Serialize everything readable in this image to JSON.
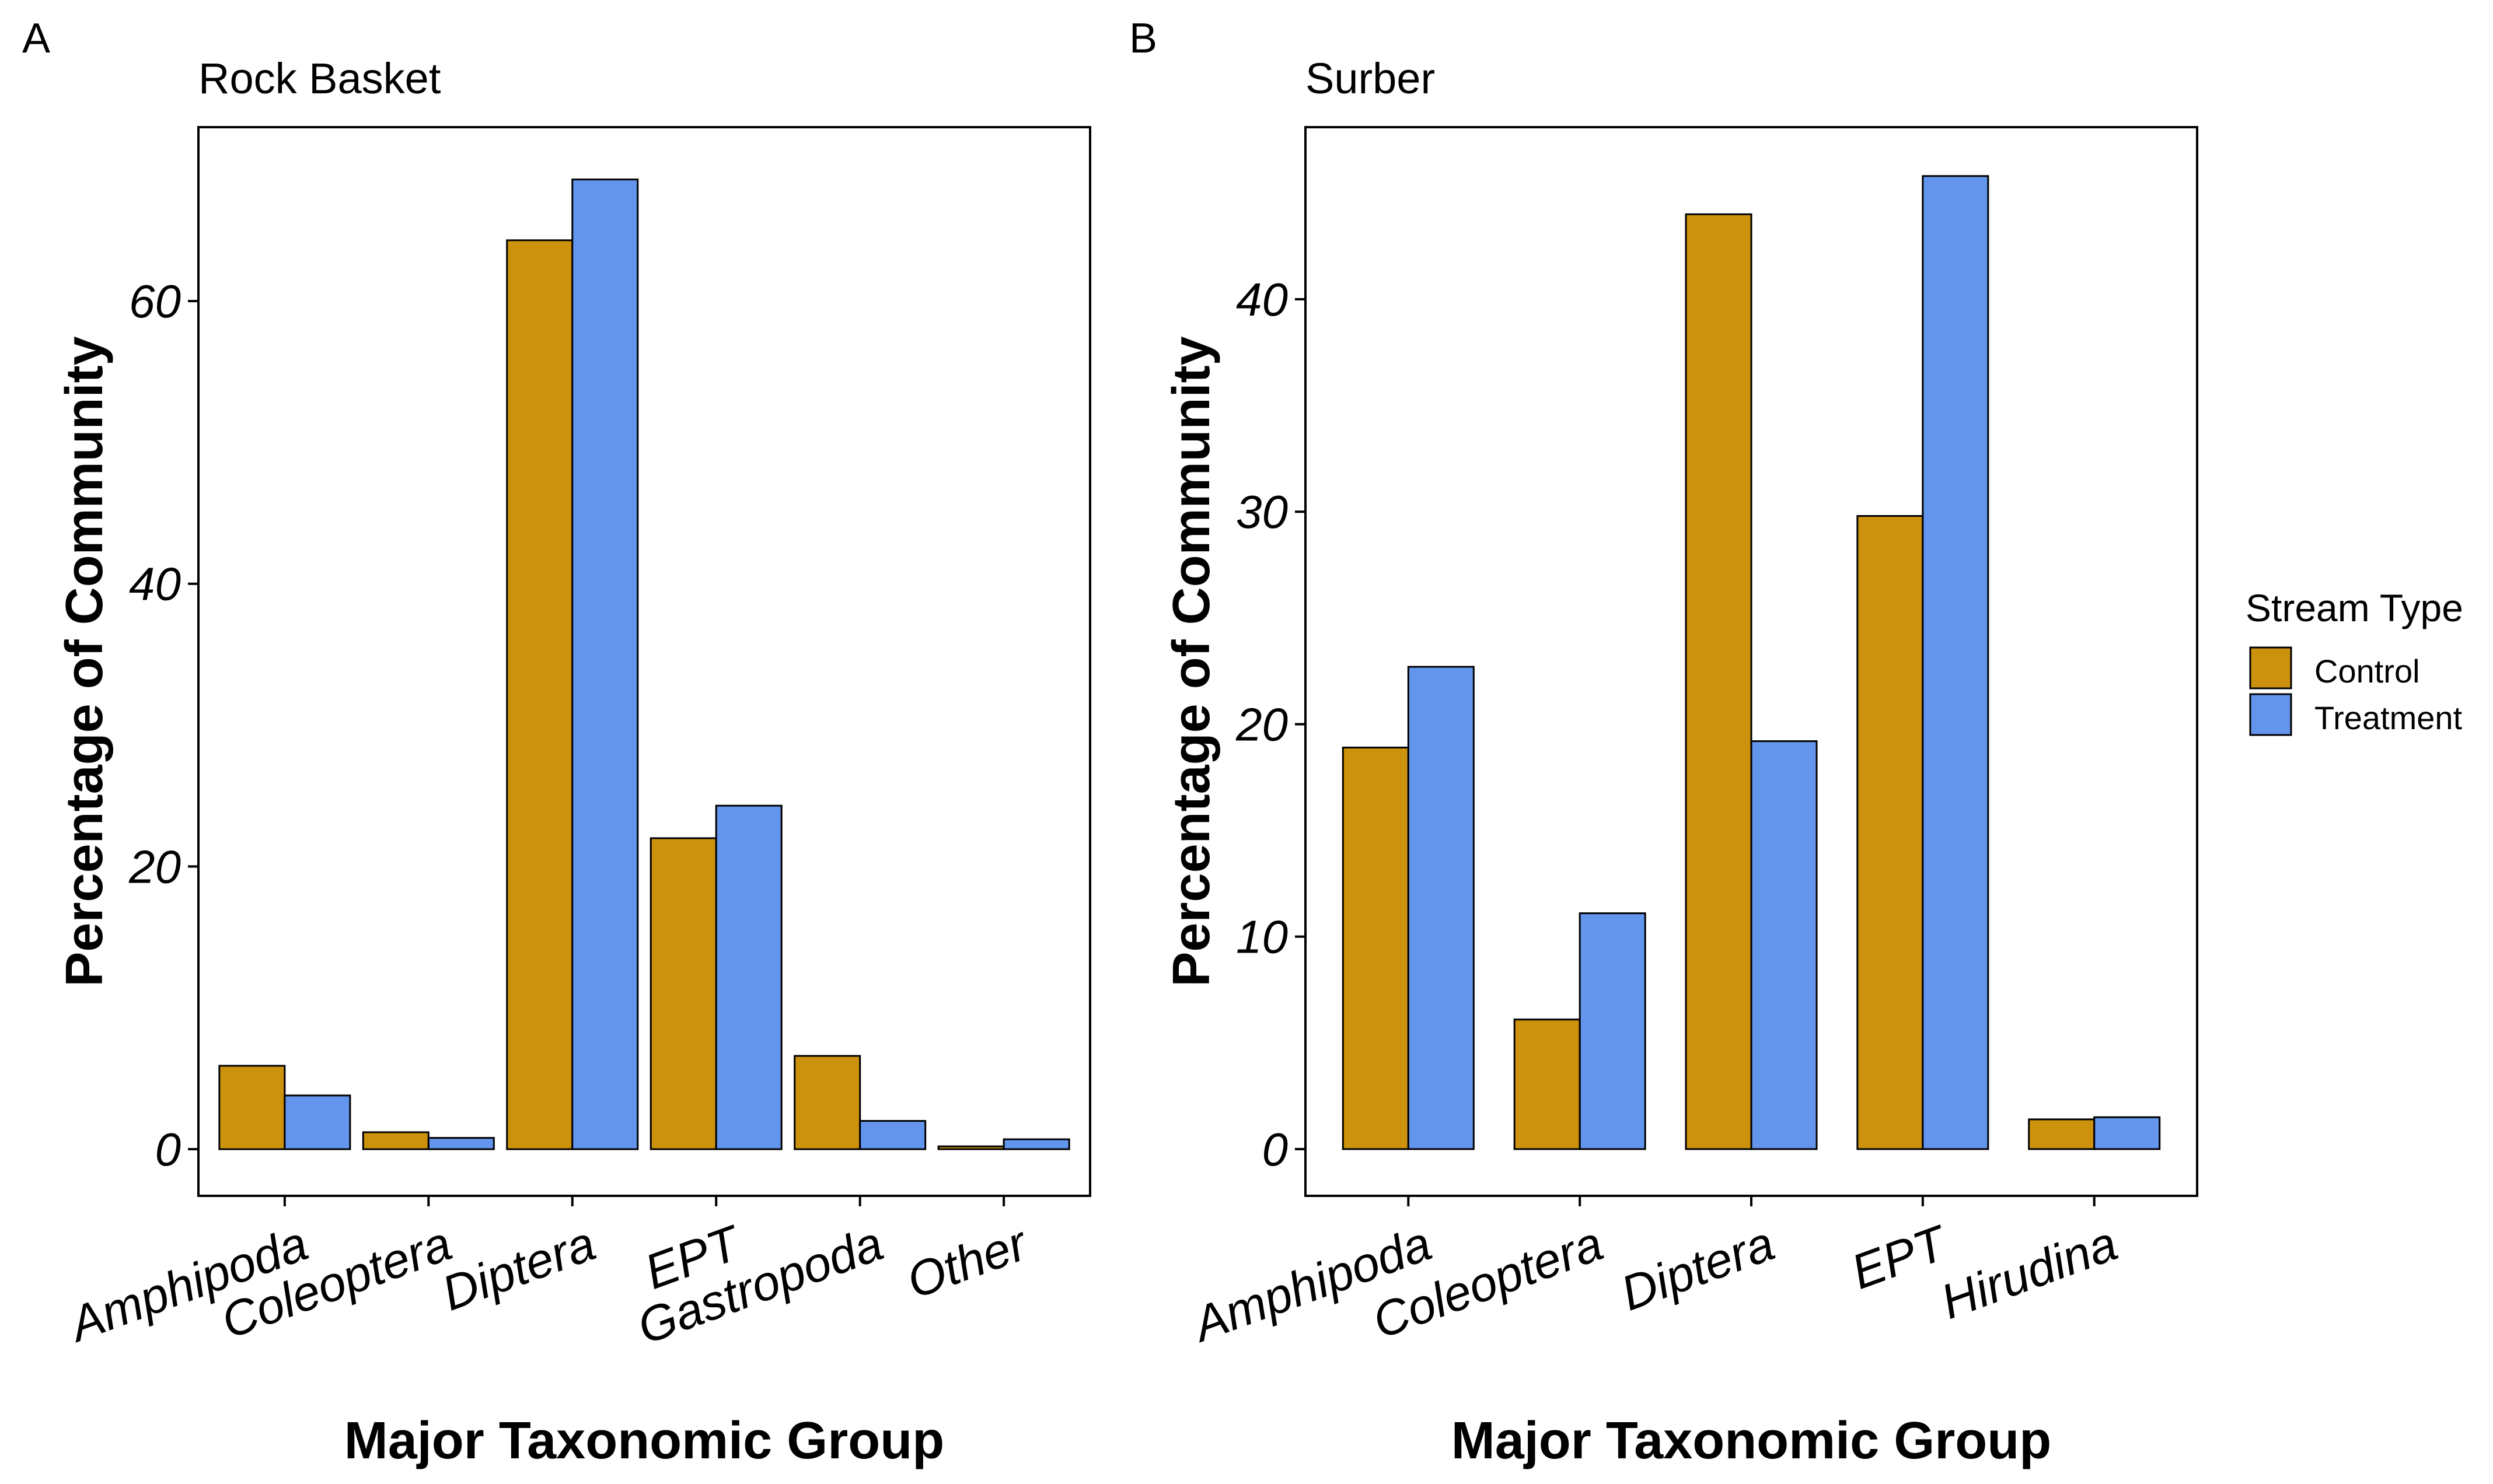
{
  "chart_data": [
    {
      "panel": "A",
      "type": "bar",
      "title": "Rock Basket",
      "xlabel": "Major Taxonomic Group",
      "ylabel": "Percentage of Community",
      "categories": [
        "Amphipoda",
        "Coleoptera",
        "Diptera",
        "EPT",
        "Gastropoda",
        "Other"
      ],
      "series": [
        {
          "name": "Control",
          "values": [
            5.9,
            1.2,
            64.3,
            22.0,
            6.6,
            0.2
          ]
        },
        {
          "name": "Treatment",
          "values": [
            3.8,
            0.8,
            68.6,
            24.3,
            2.0,
            0.7
          ]
        }
      ],
      "ylim": [
        -3.3,
        72.3
      ],
      "yticks": [
        0,
        20,
        40,
        60
      ],
      "ytick_labels": [
        "0",
        "20",
        "40",
        "60"
      ],
      "grid": false
    },
    {
      "panel": "B",
      "type": "bar",
      "title": "Surber",
      "xlabel": "Major Taxonomic Group",
      "ylabel": "Percentage of Community",
      "categories": [
        "Amphipoda",
        "Coleoptera",
        "Diptera",
        "EPT",
        "Hirudina"
      ],
      "series": [
        {
          "name": "Control",
          "values": [
            18.9,
            6.1,
            44.0,
            29.8,
            1.4
          ]
        },
        {
          "name": "Treatment",
          "values": [
            22.7,
            11.1,
            19.2,
            45.8,
            1.5
          ]
        }
      ],
      "ylim": [
        -2.2,
        48.1
      ],
      "yticks": [
        0,
        10,
        20,
        30,
        40
      ],
      "ytick_labels": [
        "0",
        "10",
        "20",
        "30",
        "40"
      ],
      "grid": false
    }
  ],
  "legend": {
    "title": "Stream Type",
    "items": [
      {
        "label": "Control",
        "color": "#CC920E"
      },
      {
        "label": "Treatment",
        "color": "#6495ED"
      }
    ],
    "placement": "right"
  }
}
